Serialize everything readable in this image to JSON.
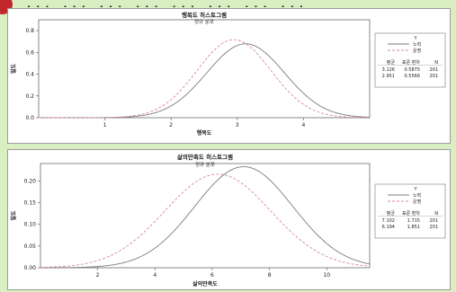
{
  "header": {
    "partial_text": "··· ··· ··· ··· ··· ··· ··· ···"
  },
  "chart_data": [
    {
      "type": "line",
      "title": "행복도 히스토그램",
      "subtitle": "정규 분포",
      "xlabel": "행복도",
      "ylabel": "밀도",
      "xlim": [
        0.0,
        5.0
      ],
      "ylim": [
        0.0,
        0.9
      ],
      "xticks": [
        "1",
        "2",
        "3",
        "4"
      ],
      "yticks": [
        "0.0",
        "0.2",
        "0.4",
        "0.6",
        "0.8"
      ],
      "legend_title": "Y",
      "series": [
        {
          "name": "노력",
          "mean": 3.126,
          "sd": 0.5875,
          "n": 201,
          "color": "#7a7a8a",
          "dash": "solid"
        },
        {
          "name": "운명",
          "mean": 2.951,
          "sd": 0.5566,
          "n": 201,
          "color": "#d98a92",
          "dash": "dashed"
        }
      ],
      "stats_header": [
        "평균",
        "표준 편차",
        "N"
      ],
      "stats_rows": [
        [
          "3.126",
          "0.5875",
          "201"
        ],
        [
          "2.951",
          "0.5566",
          "201"
        ]
      ]
    },
    {
      "type": "line",
      "title": "삶의만족도 히스토그램",
      "subtitle": "정규 분포",
      "xlabel": "삶의만족도",
      "ylabel": "밀도",
      "xlim": [
        0.0,
        11.5
      ],
      "ylim": [
        0.0,
        0.24
      ],
      "xticks": [
        "2",
        "4",
        "6",
        "8",
        "10"
      ],
      "yticks": [
        "0.00",
        "0.05",
        "0.10",
        "0.15",
        "0.20"
      ],
      "legend_title": "Y",
      "series": [
        {
          "name": "노력",
          "mean": 7.102,
          "sd": 1.715,
          "n": 201,
          "color": "#7a7a8a",
          "dash": "solid"
        },
        {
          "name": "운명",
          "mean": 6.194,
          "sd": 1.851,
          "n": 201,
          "color": "#d98a92",
          "dash": "dashed"
        }
      ],
      "stats_header": [
        "평균",
        "표준 편차",
        "N"
      ],
      "stats_rows": [
        [
          "7.102",
          "1.715",
          "201"
        ],
        [
          "6.194",
          "1.851",
          "201"
        ]
      ]
    }
  ]
}
